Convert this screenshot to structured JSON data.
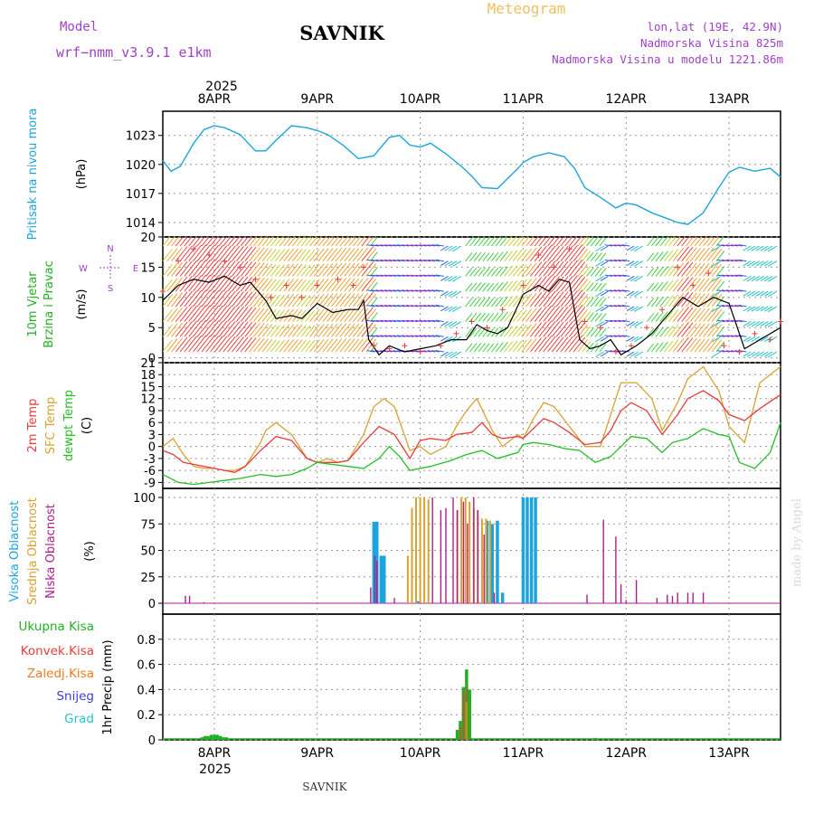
{
  "header": {
    "station": "SAVNIK",
    "title": "Meteogram",
    "model_label": "Model",
    "model_name": "wrf−nmm_v3.9.1 e1km",
    "coords": "lon,lat (19E, 42.9N)",
    "elevation": "Nadmorska Visina 825m",
    "model_elevation": "Nadmorska Visina u modelu 1221.86m",
    "year": "2025",
    "footer_station": "SAVNIK",
    "credit": "made by Angel"
  },
  "colors": {
    "pressure": "#1ca5dc",
    "temp2m": "#e83c3c",
    "sfc_temp": "#d9a22f",
    "dewpoint": "#22c022",
    "cloud_high": "#1ca5dc",
    "cloud_mid": "#d9a22f",
    "cloud_low": "#b01c8c",
    "precip_total": "#22b022",
    "precip_conv": "#e83c3c",
    "precip_frozen": "#f07c20",
    "precip_snow": "#3c3cdc",
    "precip_graupel": "#20c8c8",
    "header_purple": "#a040c8",
    "header_orange": "#f0c060"
  },
  "chart_data": [
    {
      "type": "line",
      "panel": "pressure",
      "ylabel": [
        "Pritisak na nivou mora",
        "(hPa)"
      ],
      "x_unit": "days since 8APR 00UTC",
      "xlim": [
        -0.5,
        5.5
      ],
      "x_ticks": [
        "8APR",
        "9APR",
        "10APR",
        "11APR",
        "12APR",
        "13APR"
      ],
      "ylim": [
        1012.5,
        1025.5
      ],
      "yticks": [
        1014,
        1017,
        1020,
        1023
      ],
      "series": [
        {
          "name": "Pritisak na nivou mora",
          "x": [
            -0.5,
            -0.42,
            -0.33,
            -0.2,
            -0.1,
            0.0,
            0.1,
            0.25,
            0.4,
            0.5,
            0.6,
            0.75,
            0.9,
            1.0,
            1.1,
            1.25,
            1.4,
            1.55,
            1.7,
            1.8,
            1.9,
            2.0,
            2.1,
            2.25,
            2.4,
            2.5,
            2.6,
            2.75,
            2.95,
            3.0,
            3.1,
            3.25,
            3.4,
            3.5,
            3.6,
            3.75,
            3.9,
            4.0,
            4.1,
            4.25,
            4.4,
            4.5,
            4.6,
            4.75,
            4.9,
            5.0,
            5.1,
            5.25,
            5.4,
            5.5
          ],
          "values": [
            1020.4,
            1019.3,
            1019.8,
            1022.2,
            1023.6,
            1024.0,
            1023.8,
            1023.1,
            1021.4,
            1021.4,
            1022.5,
            1024.0,
            1023.8,
            1023.5,
            1023.1,
            1022.0,
            1020.6,
            1020.9,
            1022.8,
            1023.0,
            1022.0,
            1021.8,
            1022.2,
            1021.1,
            1019.8,
            1018.8,
            1017.6,
            1017.5,
            1019.6,
            1020.2,
            1020.8,
            1021.2,
            1020.8,
            1019.6,
            1017.6,
            1016.6,
            1015.5,
            1016.0,
            1015.8,
            1015.0,
            1014.4,
            1014.0,
            1013.8,
            1015.0,
            1017.6,
            1019.2,
            1019.7,
            1019.3,
            1019.6,
            1018.7
          ]
        }
      ]
    },
    {
      "type": "line",
      "panel": "wind",
      "ylabel": [
        "10m Vjetar",
        "Brzina i Pravac",
        "(m/s)"
      ],
      "compass": [
        "N",
        "E",
        "S",
        "W"
      ],
      "ylim": [
        -0.8,
        20
      ],
      "yticks": [
        0,
        5,
        10,
        15,
        20
      ],
      "series": [
        {
          "name": "10m Vjetar",
          "x": [
            -0.5,
            -0.35,
            -0.2,
            -0.05,
            0.1,
            0.25,
            0.35,
            0.5,
            0.6,
            0.75,
            0.85,
            1.0,
            1.15,
            1.3,
            1.4,
            1.45,
            1.5,
            1.6,
            1.7,
            1.85,
            2.0,
            2.15,
            2.3,
            2.45,
            2.55,
            2.65,
            2.75,
            2.85,
            3.0,
            3.15,
            3.25,
            3.35,
            3.45,
            3.55,
            3.65,
            3.75,
            3.85,
            3.95,
            4.1,
            4.25,
            4.4,
            4.55,
            4.7,
            4.85,
            5.0,
            5.15,
            5.3,
            5.5
          ],
          "values": [
            9.5,
            12,
            13,
            12.5,
            13.5,
            12,
            12.5,
            9.5,
            6.5,
            7,
            6.5,
            9,
            7.5,
            8,
            8,
            9.5,
            3,
            0.5,
            2,
            1,
            1.5,
            2,
            3,
            3,
            5.5,
            4.5,
            4,
            5,
            10.5,
            12,
            11,
            13,
            12.5,
            3,
            1.5,
            2,
            3,
            0.5,
            2,
            4,
            7,
            10,
            8.5,
            10,
            9,
            1.5,
            3,
            5
          ]
        },
        {
          "name": "Brzina",
          "x": [
            -0.5,
            -0.35,
            -0.2,
            -0.05,
            0.1,
            0.25,
            0.4,
            0.55,
            0.7,
            0.85,
            1.0,
            1.2,
            1.35,
            1.45,
            1.55,
            1.7,
            1.85,
            2.0,
            2.2,
            2.35,
            2.5,
            2.65,
            2.8,
            3.0,
            3.15,
            3.3,
            3.45,
            3.6,
            3.75,
            3.9,
            4.05,
            4.2,
            4.35,
            4.5,
            4.65,
            4.8,
            4.95,
            5.1,
            5.25,
            5.4,
            5.5
          ],
          "values": [
            11,
            16,
            18,
            17,
            16,
            15,
            13,
            10,
            12,
            10,
            12,
            13,
            12,
            15,
            2,
            1.5,
            2,
            1,
            2,
            4,
            6,
            5,
            8,
            12,
            17,
            15,
            18,
            6,
            5,
            1,
            2,
            5,
            8,
            15,
            12,
            14,
            2,
            1,
            4,
            3,
            6
          ]
        }
      ]
    },
    {
      "type": "line",
      "panel": "temperature",
      "ylabel": [
        "2m Temp",
        "SFC Temp",
        "dewpt Temp",
        "(C)"
      ],
      "ylim": [
        -10.5,
        21
      ],
      "yticks": [
        -9,
        -6,
        -3,
        0,
        3,
        6,
        9,
        12,
        15,
        18,
        21
      ],
      "series": [
        {
          "name": "2m Temp",
          "x": [
            -0.5,
            -0.4,
            -0.3,
            -0.2,
            -0.1,
            0.0,
            0.1,
            0.2,
            0.3,
            0.45,
            0.6,
            0.75,
            0.9,
            1.0,
            1.1,
            1.2,
            1.3,
            1.45,
            1.6,
            1.75,
            1.9,
            2.0,
            2.1,
            2.25,
            2.35,
            2.5,
            2.6,
            2.7,
            2.8,
            2.95,
            3.0,
            3.1,
            3.2,
            3.3,
            3.45,
            3.6,
            3.75,
            3.85,
            3.95,
            4.05,
            4.2,
            4.35,
            4.5,
            4.6,
            4.75,
            4.9,
            5.0,
            5.15,
            5.3,
            5.5
          ],
          "values": [
            -1,
            -2,
            -4,
            -4.5,
            -5,
            -5.5,
            -6,
            -6.5,
            -5,
            -1,
            2.5,
            1.5,
            -3,
            -4,
            -4,
            -4,
            -3.5,
            1,
            5,
            3,
            -3,
            1.5,
            2,
            1.5,
            3,
            3.5,
            6,
            3,
            2,
            2.5,
            2,
            4.5,
            7,
            6,
            3.5,
            0.5,
            1,
            4,
            9,
            11,
            9,
            3,
            8,
            12,
            14,
            11.5,
            8,
            6.5,
            9.5,
            13
          ]
        },
        {
          "name": "SFC Temp",
          "x": [
            -0.5,
            -0.4,
            -0.3,
            -0.2,
            -0.1,
            0.0,
            0.1,
            0.2,
            0.3,
            0.45,
            0.5,
            0.6,
            0.75,
            0.9,
            1.0,
            1.1,
            1.2,
            1.3,
            1.45,
            1.55,
            1.65,
            1.75,
            1.9,
            2.0,
            2.1,
            2.25,
            2.35,
            2.45,
            2.55,
            2.7,
            2.8,
            2.95,
            3.0,
            3.1,
            3.2,
            3.3,
            3.45,
            3.6,
            3.75,
            3.85,
            3.95,
            4.1,
            4.25,
            4.35,
            4.5,
            4.6,
            4.75,
            4.9,
            5.0,
            5.15,
            5.3,
            5.5
          ],
          "values": [
            0,
            2,
            -2,
            -5,
            -5.5,
            -5.5,
            -6,
            -6,
            -5,
            1,
            4,
            6,
            3,
            -3,
            -4,
            -3,
            -4,
            -3.5,
            3,
            10,
            12,
            10,
            -1,
            0,
            -2,
            0,
            5,
            9,
            12,
            4,
            0,
            3,
            2,
            7,
            11,
            10,
            5,
            0,
            0,
            8,
            16,
            16,
            12,
            4,
            11,
            17,
            20,
            14,
            5,
            1,
            16,
            20
          ]
        },
        {
          "name": "dewpt Temp",
          "x": [
            -0.5,
            -0.35,
            -0.2,
            -0.05,
            0.1,
            0.25,
            0.45,
            0.6,
            0.75,
            0.9,
            1.0,
            1.15,
            1.3,
            1.45,
            1.6,
            1.7,
            1.8,
            1.9,
            2.0,
            2.1,
            2.3,
            2.45,
            2.6,
            2.75,
            2.95,
            3.0,
            3.1,
            3.25,
            3.4,
            3.55,
            3.7,
            3.85,
            3.95,
            4.05,
            4.2,
            4.35,
            4.45,
            4.6,
            4.75,
            4.9,
            5.0,
            5.1,
            5.25,
            5.4,
            5.5
          ],
          "values": [
            -7,
            -9,
            -9.5,
            -9,
            -8.5,
            -8,
            -7,
            -7.5,
            -7,
            -5.5,
            -4,
            -4.5,
            -5,
            -5.5,
            -3,
            0,
            -2.5,
            -6,
            -5.5,
            -5,
            -3.5,
            -2,
            -1,
            -3,
            -1.5,
            0.5,
            1,
            0.5,
            -0.5,
            -1,
            -4,
            -2.5,
            0,
            2.5,
            2,
            -1.5,
            1,
            2,
            4.5,
            3,
            2.5,
            -4,
            -5.5,
            -1.5,
            6
          ]
        }
      ]
    },
    {
      "type": "bar",
      "panel": "clouds",
      "ylabel": [
        "Visoka Oblacnost",
        "Srednja Oblacnost",
        "Niska Oblacnost",
        "(%)"
      ],
      "ylim": [
        0,
        100
      ],
      "yticks": [
        0,
        25,
        50,
        75,
        100
      ],
      "series": [
        {
          "name": "Visoka Oblacnost",
          "x": [
            1.55,
            1.58,
            1.62,
            1.65,
            1.98,
            2.65,
            2.7,
            2.75,
            2.8,
            3.0,
            3.04,
            3.08,
            3.12
          ],
          "values": [
            77,
            77,
            45,
            45,
            2,
            78,
            75,
            78,
            10,
            100,
            100,
            100,
            100
          ]
        },
        {
          "name": "Srednja Oblacnost",
          "x": [
            1.88,
            1.92,
            1.96,
            2.0,
            2.04,
            2.08,
            2.36,
            2.4,
            2.44,
            2.48,
            2.52,
            2.56,
            2.6,
            2.64,
            2.68
          ],
          "values": [
            45,
            90,
            100,
            100,
            100,
            98,
            88,
            100,
            100,
            96,
            90,
            88,
            80,
            80,
            78
          ]
        },
        {
          "name": "Niska Oblacnost",
          "x": [
            -0.28,
            -0.24,
            -0.1,
            1.52,
            1.56,
            1.58,
            1.75,
            2.12,
            2.2,
            2.25,
            2.32,
            2.36,
            2.42,
            2.46,
            2.52,
            2.56,
            2.62,
            2.72,
            3.62,
            3.78,
            3.9,
            3.95,
            4.0,
            4.1,
            4.3,
            4.4,
            4.45,
            4.5,
            4.6,
            4.65,
            4.75
          ],
          "values": [
            7,
            7,
            1,
            15,
            45,
            40,
            5,
            100,
            88,
            90,
            100,
            88,
            96,
            75,
            100,
            88,
            65,
            10,
            8,
            79,
            63,
            18,
            3,
            22,
            5,
            8,
            7,
            10,
            10,
            10,
            10
          ]
        }
      ]
    },
    {
      "type": "bar",
      "panel": "precip",
      "ylabel": [
        "Ukupna Kisa",
        "Konvek.Kisa",
        "Zaledj.Kisa",
        "Snijeg",
        "Grad",
        "1hr Precip (mm)"
      ],
      "ylim": [
        0,
        1.0
      ],
      "yticks": [
        0,
        0.2,
        0.4,
        0.6,
        0.8
      ],
      "x_labels": [
        "8APR",
        "9APR",
        "10APR",
        "11APR",
        "12APR",
        "13APR"
      ],
      "series": [
        {
          "name": "Ukupna Kisa",
          "x": [
            -0.12,
            -0.09,
            -0.06,
            -0.03,
            0.0,
            0.03,
            0.06,
            0.09,
            0.12,
            2.36,
            2.39,
            2.42,
            2.45,
            2.48,
            3.7,
            4.95
          ],
          "values": [
            0.02,
            0.03,
            0.03,
            0.04,
            0.04,
            0.04,
            0.03,
            0.02,
            0.02,
            0.08,
            0.15,
            0.42,
            0.56,
            0.4,
            0.015,
            0.015
          ]
        },
        {
          "name": "Konvek.Kisa",
          "x": [
            2.39,
            2.42,
            2.45
          ],
          "values": [
            0.1,
            0.38,
            0.42
          ]
        },
        {
          "name": "Zaledj.Kisa",
          "x": [
            2.45
          ],
          "values": [
            0.3
          ]
        },
        {
          "name": "Snijeg",
          "x": [],
          "values": []
        },
        {
          "name": "Grad",
          "x": [],
          "values": []
        }
      ]
    }
  ]
}
